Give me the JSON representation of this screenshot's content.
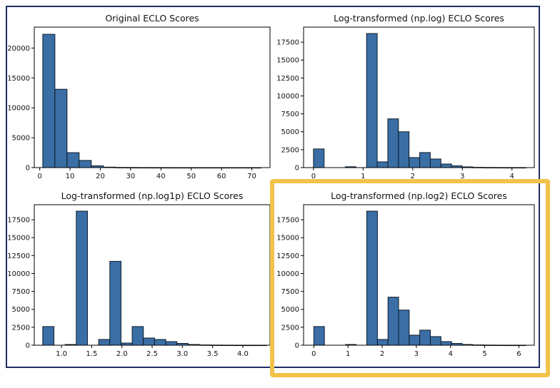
{
  "colors": {
    "bar_fill": "#3a6ea5",
    "bar_edge": "#0d1b2a",
    "frame": "#1f2f66",
    "highlight": "#f2c34a"
  },
  "chart_data": [
    {
      "type": "bar",
      "title": "Original ECLO Scores",
      "xlim": [
        -1.8,
        76
      ],
      "ylim": [
        0,
        23500
      ],
      "xticks": [
        0,
        10,
        20,
        30,
        40,
        50,
        60,
        70
      ],
      "xtick_labels": [
        "0",
        "10",
        "20",
        "30",
        "40",
        "50",
        "60",
        "70"
      ],
      "yticks": [
        0,
        5000,
        10000,
        15000,
        20000
      ],
      "ytick_labels": [
        "0",
        "5000",
        "10000",
        "15000",
        "20000"
      ],
      "bin_edges": [
        1,
        5,
        9,
        13,
        17,
        21,
        25,
        29,
        33,
        37,
        41,
        45,
        49,
        53,
        57,
        61,
        65,
        69,
        73
      ],
      "counts": [
        22300,
        13100,
        2500,
        1200,
        300,
        80,
        30,
        15,
        8,
        5,
        3,
        2,
        1,
        1,
        1,
        1,
        1,
        1
      ],
      "highlighted": false
    },
    {
      "type": "bar",
      "title": "Log-transformed (np.log) ECLO Scores",
      "xlim": [
        -0.2,
        4.45
      ],
      "ylim": [
        0,
        19600
      ],
      "xticks": [
        0,
        1,
        2,
        3,
        4
      ],
      "xtick_labels": [
        "0",
        "1",
        "2",
        "3",
        "4"
      ],
      "yticks": [
        0,
        2500,
        5000,
        7500,
        10000,
        12500,
        15000,
        17500
      ],
      "ytick_labels": [
        "0",
        "2500",
        "5000",
        "7500",
        "10000",
        "12500",
        "15000",
        "17500"
      ],
      "bin_edges": [
        0,
        0.214,
        0.428,
        0.642,
        0.856,
        1.07,
        1.284,
        1.498,
        1.712,
        1.926,
        2.14,
        2.354,
        2.568,
        2.782,
        2.996,
        3.21,
        3.424,
        3.638,
        3.852,
        4.066,
        4.28
      ],
      "counts": [
        2600,
        0,
        0,
        120,
        0,
        18700,
        800,
        6800,
        5000,
        1400,
        2100,
        1200,
        500,
        250,
        100,
        40,
        20,
        10,
        5,
        5
      ],
      "highlighted": false
    },
    {
      "type": "bar",
      "title": "Log-transformed (np.log1p) ECLO Scores",
      "xlim": [
        0.55,
        4.45
      ],
      "ylim": [
        0,
        19600
      ],
      "xticks": [
        1.0,
        1.5,
        2.0,
        2.5,
        3.0,
        3.5,
        4.0
      ],
      "xtick_labels": [
        "1.0",
        "1.5",
        "2.0",
        "2.5",
        "3.0",
        "3.5",
        "4.0"
      ],
      "yticks": [
        0,
        2500,
        5000,
        7500,
        10000,
        12500,
        15000,
        17500
      ],
      "ytick_labels": [
        "0",
        "2500",
        "5000",
        "7500",
        "10000",
        "12500",
        "15000",
        "17500"
      ],
      "bin_edges": [
        0.69,
        0.875,
        1.06,
        1.245,
        1.43,
        1.615,
        1.8,
        1.985,
        2.17,
        2.355,
        2.54,
        2.725,
        2.91,
        3.095,
        3.28,
        3.465,
        3.65,
        3.835,
        4.02,
        4.205,
        4.39
      ],
      "counts": [
        2600,
        0,
        100,
        18700,
        0,
        800,
        11700,
        300,
        2600,
        1000,
        800,
        500,
        250,
        100,
        40,
        20,
        10,
        5,
        3,
        2
      ],
      "highlighted": false
    },
    {
      "type": "bar",
      "title": "Log-transformed (np.log2) ECLO Scores",
      "xlim": [
        -0.3,
        6.45
      ],
      "ylim": [
        0,
        19600
      ],
      "xticks": [
        0,
        1,
        2,
        3,
        4,
        5,
        6
      ],
      "xtick_labels": [
        "0",
        "1",
        "2",
        "3",
        "4",
        "5",
        "6"
      ],
      "yticks": [
        0,
        2500,
        5000,
        7500,
        10000,
        12500,
        15000,
        17500
      ],
      "ytick_labels": [
        "0",
        "2500",
        "5000",
        "7500",
        "10000",
        "12500",
        "15000",
        "17500"
      ],
      "bin_edges": [
        0,
        0.31,
        0.62,
        0.93,
        1.24,
        1.55,
        1.86,
        2.17,
        2.48,
        2.79,
        3.1,
        3.41,
        3.72,
        4.03,
        4.34,
        4.65,
        4.96,
        5.27,
        5.58,
        5.89,
        6.2
      ],
      "counts": [
        2600,
        0,
        0,
        100,
        0,
        18700,
        800,
        6700,
        4900,
        1400,
        2100,
        1200,
        500,
        250,
        100,
        40,
        20,
        10,
        5,
        5
      ],
      "highlighted": true
    }
  ]
}
